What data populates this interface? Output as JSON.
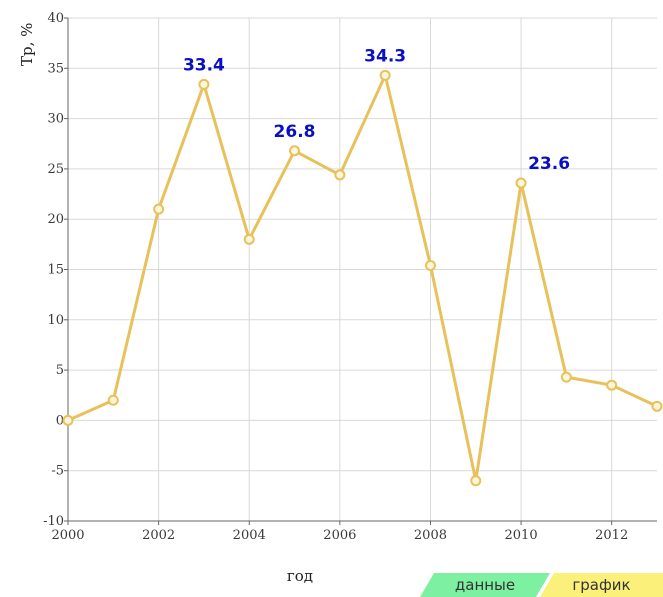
{
  "chart_data": {
    "type": "line",
    "title": "",
    "xlabel": "год",
    "ylabel": "Тр, %",
    "xlim": [
      2000,
      2013
    ],
    "ylim": [
      -10,
      40
    ],
    "grid": true,
    "x_ticks": [
      "2000",
      "2002",
      "2004",
      "2006",
      "2008",
      "2010",
      "2012"
    ],
    "y_ticks": [
      "40",
      "35",
      "30",
      "25",
      "20",
      "15",
      "10",
      "5",
      "0",
      "-5",
      "-10"
    ],
    "series": [
      {
        "color": "#e8c15a",
        "x": [
          2000,
          2001,
          2002,
          2003,
          2004,
          2005,
          2006,
          2007,
          2008,
          2009,
          2010,
          2011,
          2012,
          2013
        ],
        "values": [
          0,
          2,
          21,
          33.4,
          18,
          26.8,
          24.4,
          34.3,
          15.4,
          -6,
          23.6,
          4.3,
          3.5,
          1.4
        ]
      }
    ],
    "annotations": [
      {
        "x": 2003,
        "y": 33.4,
        "text": "33.4"
      },
      {
        "x": 2005,
        "y": 26.8,
        "text": "26.8"
      },
      {
        "x": 2007,
        "y": 34.3,
        "text": "34.3"
      },
      {
        "x": 2010,
        "y": 23.6,
        "text": "23.6"
      }
    ],
    "annotation_color": "#0b0fc4"
  },
  "tabs": {
    "data_label": "данные",
    "data_color": "#7ef0a2",
    "chart_label": "график",
    "chart_color": "#fbf07a"
  }
}
